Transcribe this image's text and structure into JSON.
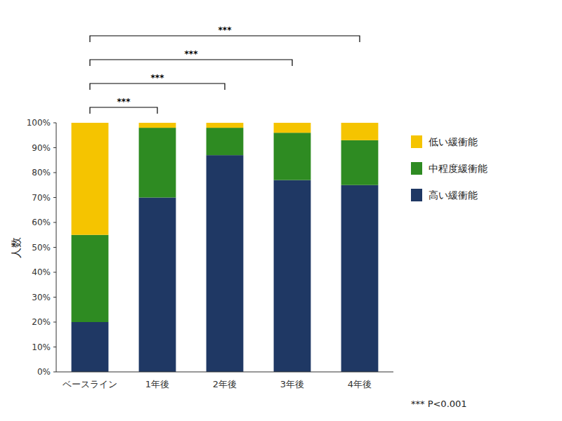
{
  "chart_data": {
    "type": "bar",
    "stacked": true,
    "ylabel": "人数",
    "categories": [
      "ベースライン",
      "1年後",
      "2年後",
      "3年後",
      "4年後"
    ],
    "series": [
      {
        "name": "高い緩衝能",
        "color": "#1F3864",
        "values": [
          20,
          70,
          87,
          77,
          75
        ]
      },
      {
        "name": "中程度緩衝能",
        "color": "#2E8B22",
        "values": [
          35,
          28,
          11,
          19,
          18
        ]
      },
      {
        "name": "低い緩衝能",
        "color": "#F5C400",
        "values": [
          45,
          2,
          2,
          4,
          7
        ]
      }
    ],
    "ylim": [
      0,
      100
    ],
    "yticks": [
      {
        "value": 0,
        "label": "0%"
      },
      {
        "value": 10,
        "label": "10%"
      },
      {
        "value": 20,
        "label": "20%"
      },
      {
        "value": 30,
        "label": "30%"
      },
      {
        "value": 40,
        "label": "40%"
      },
      {
        "value": 50,
        "label": "50%"
      },
      {
        "value": 60,
        "label": "60%"
      },
      {
        "value": 70,
        "label": "70%"
      },
      {
        "value": 80,
        "label": "80%"
      },
      {
        "value": 90,
        "label": "90%"
      },
      {
        "value": 100,
        "label": "100%"
      }
    ],
    "grid": false,
    "legend": "right",
    "annotations": [
      {
        "text": "***",
        "between": [
          "ベースライン",
          "1年後"
        ]
      },
      {
        "text": "***",
        "between": [
          "ベースライン",
          "2年後"
        ]
      },
      {
        "text": "***",
        "between": [
          "ベースライン",
          "3年後"
        ]
      },
      {
        "text": "***",
        "between": [
          "ベースライン",
          "4年後"
        ]
      },
      {
        "text": "*** P<0.001"
      }
    ]
  }
}
